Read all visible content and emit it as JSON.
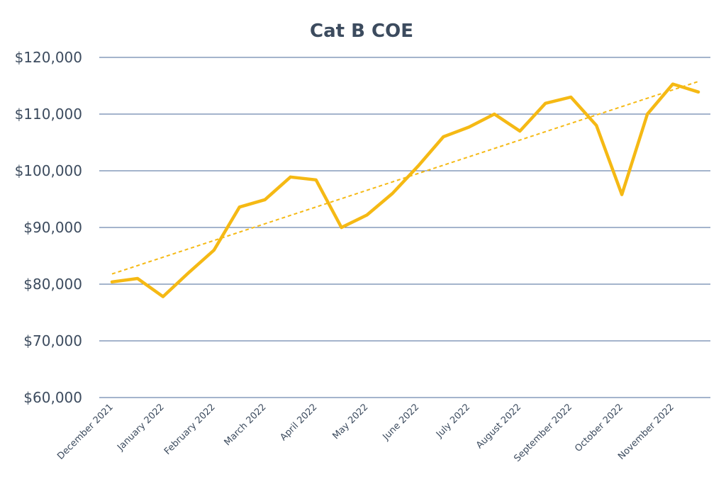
{
  "chart_data": {
    "type": "line",
    "title": "Cat B COE",
    "xlabel": "",
    "ylabel": "",
    "ylim": [
      60000,
      120000
    ],
    "y_ticks": [
      60000,
      70000,
      80000,
      90000,
      100000,
      110000,
      120000
    ],
    "y_tick_labels": [
      "$60,000",
      "$70,000",
      "$80,000",
      "$90,000",
      "$100,000",
      "$110,000",
      "$120,000"
    ],
    "x_tick_labels": [
      "December 2021",
      "January 2022",
      "February 2022",
      "March 2022",
      "April 2022",
      "May 2022",
      "June 2022",
      "July 2022",
      "August 2022",
      "September 2022",
      "October 2022",
      "November 2022"
    ],
    "x": [
      "December 2021 (1)",
      "December 2021 (2)",
      "January 2022 (1)",
      "January 2022 (2)",
      "February 2022 (1)",
      "February 2022 (2)",
      "March 2022 (1)",
      "March 2022 (2)",
      "April 2022 (1)",
      "April 2022 (2)",
      "May 2022 (1)",
      "May 2022 (2)",
      "June 2022 (1)",
      "June 2022 (2)",
      "July 2022 (1)",
      "July 2022 (2)",
      "August 2022 (1)",
      "August 2022 (2)",
      "September 2022 (1)",
      "September 2022 (2)",
      "October 2022 (1)",
      "October 2022 (2)",
      "November 2022 (1)",
      "November 2022 (2)"
    ],
    "series": [
      {
        "values": [
          80400,
          81000,
          77800,
          82000,
          86000,
          93600,
          94900,
          98900,
          98400,
          90000,
          92200,
          96000,
          100800,
          106000,
          107700,
          110000,
          107000,
          111900,
          113000,
          108000,
          95800,
          110000,
          115300,
          113900
        ],
        "color": "#f5b914",
        "trendline": {
          "type": "linear",
          "style": "dashed",
          "color": "#f5b914"
        }
      }
    ],
    "grid": true,
    "legend": "none"
  }
}
